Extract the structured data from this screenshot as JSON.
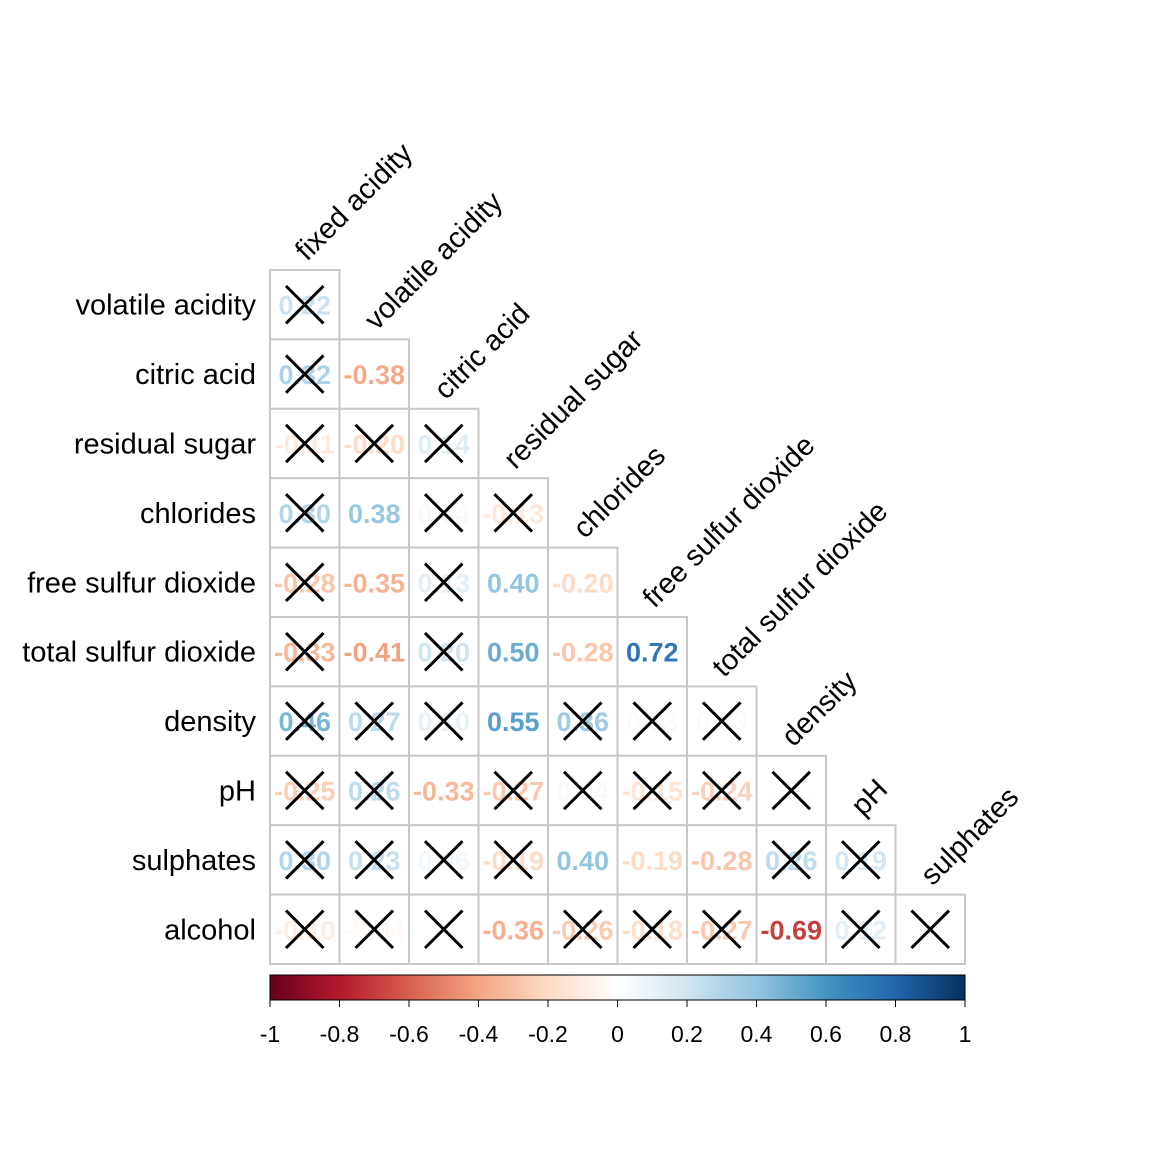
{
  "chart_data": {
    "type": "heatmap",
    "layout": "lower-triangle correlation matrix",
    "variables": [
      "fixed acidity",
      "volatile acidity",
      "citric acid",
      "residual sugar",
      "chlorides",
      "free sulfur dioxide",
      "total sulfur dioxide",
      "density",
      "pH",
      "sulphates",
      "alcohol"
    ],
    "row_labels": [
      "volatile acidity",
      "citric acid",
      "residual sugar",
      "chlorides",
      "free sulfur dioxide",
      "total sulfur dioxide",
      "density",
      "pH",
      "sulphates",
      "alcohol"
    ],
    "col_labels": [
      "fixed acidity",
      "volatile acidity",
      "citric acid",
      "residual sugar",
      "chlorides",
      "free sulfur dioxide",
      "total sulfur dioxide",
      "density",
      "pH",
      "sulphates"
    ],
    "coefficient_labels": [
      [
        "0.22"
      ],
      [
        "0.32",
        "-0.38"
      ],
      [
        "-0.11",
        "-0.20",
        "0.14"
      ],
      [
        "0.30",
        "0.38",
        "0.04",
        "-0.13"
      ],
      [
        "-0.28",
        "-0.35",
        "0.13",
        "0.40",
        "-0.20"
      ],
      [
        "-0.33",
        "-0.41",
        "0.20",
        "0.50",
        "-0.28",
        "0.72"
      ],
      [
        "0.46",
        "0.27",
        "0.10",
        "0.55",
        "0.36",
        "0.03",
        "0.03"
      ],
      [
        "-0.25",
        "0.26",
        "-0.33",
        "-0.27",
        "0.04",
        "-0.15",
        "-0.24",
        "0.01"
      ],
      [
        "0.30",
        "0.23",
        "0.06",
        "-0.19",
        "0.40",
        "-0.19",
        "-0.28",
        "0.26",
        "0.19"
      ],
      [
        "-0.10",
        "-0.04",
        "0.01",
        "-0.36",
        "-0.26",
        "-0.18",
        "-0.27",
        "-0.69",
        "0.12",
        "-0.00"
      ]
    ],
    "insignificant": [
      [
        true
      ],
      [
        true,
        false
      ],
      [
        true,
        true,
        true
      ],
      [
        true,
        false,
        true,
        true
      ],
      [
        true,
        false,
        true,
        false,
        false
      ],
      [
        true,
        false,
        true,
        false,
        false,
        false
      ],
      [
        true,
        true,
        true,
        false,
        true,
        true,
        true
      ],
      [
        true,
        true,
        false,
        true,
        true,
        true,
        true,
        true
      ],
      [
        true,
        true,
        true,
        true,
        false,
        false,
        false,
        true,
        true
      ],
      [
        true,
        true,
        true,
        false,
        true,
        true,
        true,
        false,
        true,
        true
      ]
    ],
    "colorbar": {
      "range": [
        -1,
        1
      ],
      "ticks": [
        "-1",
        "-0.8",
        "-0.6",
        "-0.4",
        "-0.2",
        "0",
        "0.2",
        "0.4",
        "0.6",
        "0.8",
        "1"
      ],
      "colors": [
        "#67001F",
        "#B2182B",
        "#D6604D",
        "#F4A582",
        "#FDDBC7",
        "#FFFFFF",
        "#D1E5F0",
        "#92C5DE",
        "#4393C3",
        "#2166AC",
        "#053061"
      ]
    },
    "title": "",
    "xlabel": "",
    "ylabel": ""
  }
}
